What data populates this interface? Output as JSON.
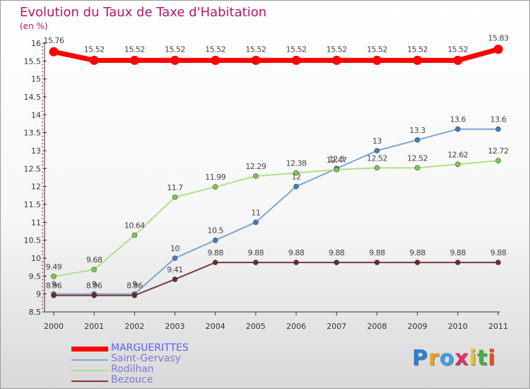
{
  "header": {
    "title": "Evolution du Taux de Taxe d'Habitation",
    "subtitle": "(en %)"
  },
  "logo": {
    "letters": [
      "P",
      "r",
      "o",
      "x",
      "i",
      "t",
      "i"
    ],
    "colors": [
      "#2a7fd4",
      "#f0a020",
      "#3aa0e0",
      "#e03060",
      "#f0c020",
      "#40b040",
      "#e05020"
    ]
  },
  "chart_data": {
    "type": "line",
    "title": "Evolution du Taux de Taxe d'Habitation",
    "ylabel": "(en %)",
    "xlabel": "",
    "categories": [
      "2000",
      "2001",
      "2002",
      "2003",
      "2004",
      "2005",
      "2006",
      "2007",
      "2008",
      "2009",
      "2010",
      "2011"
    ],
    "ylim": [
      8.5,
      16
    ],
    "yticks": [
      "8.5",
      "9",
      "9.5",
      "10",
      "10.5",
      "11",
      "11.5",
      "12",
      "12.5",
      "13",
      "13.5",
      "14",
      "14.5",
      "15",
      "15.5",
      "16"
    ],
    "grid": false,
    "legend_position": "bottom-left",
    "series": [
      {
        "name": "MARGUERITTES",
        "color": "#ff0000",
        "line_style": "thick",
        "values": [
          15.76,
          15.52,
          15.52,
          15.52,
          15.52,
          15.52,
          15.52,
          15.52,
          15.52,
          15.52,
          15.52,
          15.83
        ],
        "labels": [
          "15.76",
          "15.52",
          "15.52",
          "15.52",
          "15.52",
          "15.52",
          "15.52",
          "15.52",
          "15.52",
          "15.52",
          "15.52",
          "15.83"
        ]
      },
      {
        "name": "Saint-Gervasy",
        "color": "#7aa7d4",
        "marker_color": "#3f7fc0",
        "line_style": "thin",
        "values": [
          9,
          9,
          9,
          10,
          10.5,
          11,
          12,
          12.5,
          13,
          13.3,
          13.6,
          13.6
        ],
        "labels": [
          "9",
          "9",
          "9",
          "10",
          "10.5",
          "11",
          "12",
          "12.5",
          "13",
          "13.3",
          "13.6",
          "13.6"
        ]
      },
      {
        "name": "Rodilhan",
        "color": "#aee08a",
        "marker_color": "#7ccc4a",
        "line_style": "thin",
        "values": [
          9.49,
          9.68,
          10.64,
          11.7,
          11.99,
          12.29,
          12.38,
          12.47,
          12.52,
          12.52,
          12.62,
          12.72
        ],
        "labels": [
          "9.49",
          "9.68",
          "10.64",
          "11.7",
          "11.99",
          "12.29",
          "12.38",
          "12.47",
          "12.52",
          "12.52",
          "12.62",
          "12.72"
        ]
      },
      {
        "name": "Bezouce",
        "color": "#7a3a3a",
        "marker_color": "#6a2a2a",
        "line_style": "thin",
        "values": [
          8.96,
          8.96,
          8.96,
          9.41,
          9.88,
          9.88,
          9.88,
          9.88,
          9.88,
          9.88,
          9.88,
          9.88
        ],
        "labels": [
          "8.96",
          "8.96",
          "8.96",
          "9.41",
          "9.88",
          "9.88",
          "9.88",
          "9.88",
          "9.88",
          "9.88",
          "9.88",
          "9.88"
        ]
      }
    ]
  }
}
